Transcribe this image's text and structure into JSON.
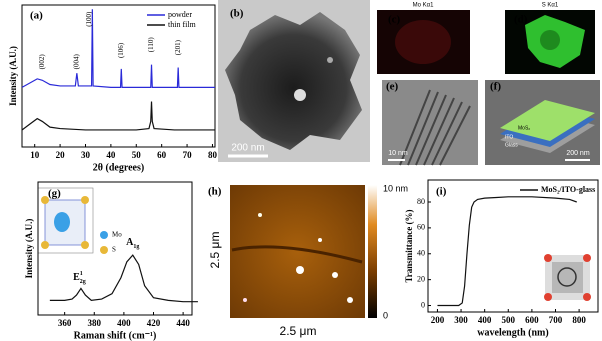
{
  "chart_data": [
    {
      "type": "line",
      "x_label": "2θ (degrees)",
      "y_label": "Intensity (A.U.)",
      "xlim": [
        5,
        81
      ],
      "ylim": [
        0,
        100
      ],
      "xticks": [
        10,
        20,
        30,
        40,
        50,
        60,
        70,
        80
      ],
      "legend": "upper right",
      "series": [
        {
          "name": "powder",
          "color": "#2a2ad8",
          "x": [
            5,
            8,
            11,
            13,
            16,
            20,
            26,
            26.6,
            27.2,
            32.4,
            32.7,
            33,
            40,
            43.8,
            44.1,
            44.4,
            50,
            55.7,
            56,
            56.3,
            60,
            66.2,
            66.5,
            66.8,
            72,
            81
          ],
          "values": [
            42,
            45,
            48,
            47,
            44,
            43,
            43,
            52,
            43,
            43,
            97,
            43,
            42,
            42,
            55,
            42,
            42,
            42,
            58,
            42,
            42,
            42,
            56,
            42,
            42,
            42
          ]
        },
        {
          "name": "thin film",
          "color": "#111111",
          "x": [
            5,
            8,
            11,
            13,
            16,
            20,
            30,
            40,
            50,
            55,
            55.7,
            56,
            56.3,
            57,
            65,
            75,
            81
          ],
          "values": [
            12,
            16,
            20,
            18,
            14,
            13,
            12,
            12,
            12,
            13,
            18,
            32,
            18,
            13,
            12,
            12,
            12
          ]
        }
      ],
      "annotations": [
        {
          "text": "(002)",
          "x": 13,
          "y": 60
        },
        {
          "text": "(004)",
          "x": 26.6,
          "y": 60
        },
        {
          "text": "(100)",
          "x": 31.5,
          "y": 90
        },
        {
          "text": "(106)",
          "x": 44.1,
          "y": 68
        },
        {
          "text": "(110)",
          "x": 56,
          "y": 72
        },
        {
          "text": "(201)",
          "x": 66.5,
          "y": 70
        }
      ]
    },
    {
      "type": "line",
      "x_label": "Raman shift (cm⁻¹)",
      "y_label": "Intensity (A.U.)",
      "xlim": [
        342,
        446
      ],
      "ylim": [
        0,
        100
      ],
      "xticks": [
        360,
        380,
        400,
        420,
        440
      ],
      "series": [
        {
          "color": "#111111",
          "x": [
            350,
            360,
            365,
            368,
            371,
            374,
            378,
            385,
            392,
            398,
            402,
            406,
            410,
            414,
            420,
            430,
            440,
            450
          ],
          "values": [
            11,
            11,
            12,
            15,
            20,
            15,
            11,
            12,
            16,
            28,
            40,
            45,
            38,
            22,
            13,
            11,
            10,
            10
          ]
        }
      ],
      "annotations": [
        {
          "text": "E",
          "sub": "2g",
          "sup": "1",
          "x": 370,
          "y": 28
        },
        {
          "text": "A",
          "sub": "1g",
          "x": 406,
          "y": 54
        }
      ]
    },
    {
      "type": "line",
      "x_label": "wavelength (nm)",
      "y_label": "Transmittance (%)",
      "xlim": [
        160,
        880
      ],
      "ylim": [
        -5,
        97
      ],
      "xticks": [
        200,
        300,
        400,
        500,
        600,
        700,
        800
      ],
      "yticks": [
        0,
        20,
        40,
        60,
        80
      ],
      "legend": "upper right",
      "series": [
        {
          "name": "MoS₂/ITO-glass",
          "color": "#111111",
          "x": [
            200,
            290,
            305,
            315,
            325,
            335,
            345,
            355,
            370,
            400,
            450,
            500,
            600,
            700,
            760,
            790
          ],
          "values": [
            0,
            0,
            2,
            15,
            40,
            62,
            76,
            80,
            82,
            83,
            83.5,
            84,
            84,
            83,
            82,
            80
          ]
        }
      ]
    }
  ],
  "panel_labels": [
    "(a)",
    "(b)",
    "(c)",
    "(d)",
    "(e)",
    "(f)",
    "(g)",
    "(h)",
    "(i)"
  ],
  "panels": {
    "b": {
      "scale": "200 nm"
    },
    "c": {
      "title": "Mo Kα1"
    },
    "d": {
      "title": "S Kα1"
    },
    "e": {
      "scale": "10 nm"
    },
    "f": {
      "layers": [
        "MoS₂",
        "ITO",
        "Glass"
      ],
      "scale": "200 nm"
    },
    "g": {
      "atoms": [
        "Mo",
        "S"
      ]
    },
    "h": {
      "colorbar_max": "10 nm",
      "colorbar_min": "0",
      "y_size": "2.5 μm",
      "x_size": "2.5 μm"
    }
  }
}
